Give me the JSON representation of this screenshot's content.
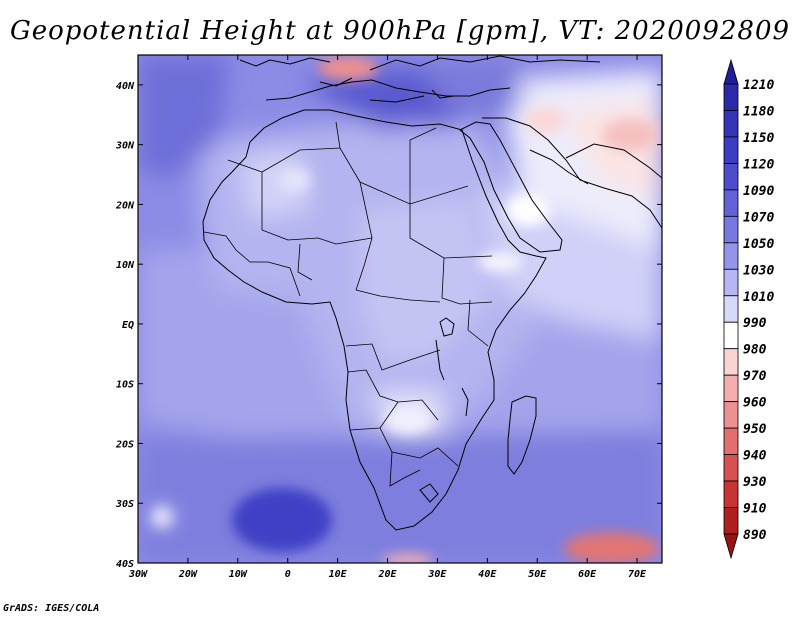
{
  "title": "Geopotential Height at 900hPa [gpm], VT: 2020092809",
  "credit": "GrADS: IGES/COLA",
  "map": {
    "lon_range": [
      -30,
      75
    ],
    "lat_range": [
      -40,
      45
    ],
    "lat_ticks": [
      {
        "value": 40,
        "label": "40N"
      },
      {
        "value": 30,
        "label": "30N"
      },
      {
        "value": 20,
        "label": "20N"
      },
      {
        "value": 10,
        "label": "10N"
      },
      {
        "value": 0,
        "label": "EQ"
      },
      {
        "value": -10,
        "label": "10S"
      },
      {
        "value": -20,
        "label": "20S"
      },
      {
        "value": -30,
        "label": "30S"
      },
      {
        "value": -40,
        "label": "40S"
      }
    ],
    "lon_ticks": [
      {
        "value": -30,
        "label": "30W"
      },
      {
        "value": -20,
        "label": "20W"
      },
      {
        "value": -10,
        "label": "10W"
      },
      {
        "value": 0,
        "label": "0"
      },
      {
        "value": 10,
        "label": "10E"
      },
      {
        "value": 20,
        "label": "20E"
      },
      {
        "value": 30,
        "label": "30E"
      },
      {
        "value": 40,
        "label": "40E"
      },
      {
        "value": 50,
        "label": "50E"
      },
      {
        "value": 60,
        "label": "60E"
      },
      {
        "value": 70,
        "label": "70E"
      }
    ]
  },
  "colorbar": {
    "levels": [
      "1210",
      "1180",
      "1150",
      "1120",
      "1090",
      "1070",
      "1050",
      "1030",
      "1010",
      "990",
      "980",
      "970",
      "960",
      "950",
      "940",
      "930",
      "910",
      "890"
    ],
    "colors": [
      "#1e1e9a",
      "#2a2aa8",
      "#3434b6",
      "#3c3cc4",
      "#4c4ccc",
      "#6262d6",
      "#7878de",
      "#9494e8",
      "#b6b6f2",
      "#d8d8f8",
      "#ffffff",
      "#fad4d4",
      "#f4b0b0",
      "#ec9090",
      "#e26e6e",
      "#d85050",
      "#c83434",
      "#b02020",
      "#961414"
    ]
  }
}
